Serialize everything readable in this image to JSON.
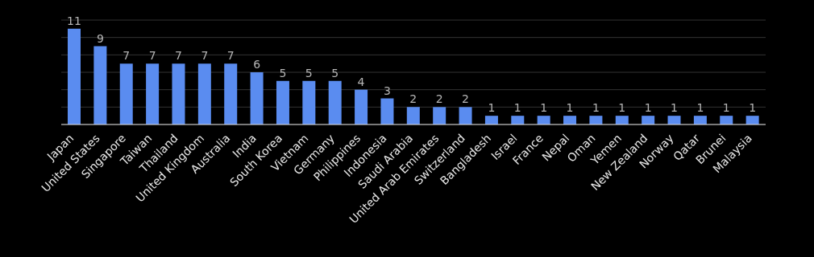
{
  "chart_data": {
    "type": "bar",
    "categories": [
      "Japan",
      "United States",
      "Singapore",
      "Taiwan",
      "Thailand",
      "United Kingdom",
      "Australia",
      "India",
      "South Korea",
      "Vietnam",
      "Germany",
      "Philippines",
      "Indonesia",
      "Saudi Arabia",
      "United Arab Emirates",
      "Switzerland",
      "Bangladesh",
      "Israel",
      "France",
      "Nepal",
      "Oman",
      "Yemen",
      "New Zealand",
      "Norway",
      "Qatar",
      "Brunei",
      "Malaysia"
    ],
    "values": [
      11,
      9,
      7,
      7,
      7,
      7,
      7,
      6,
      5,
      5,
      5,
      4,
      3,
      2,
      2,
      2,
      1,
      1,
      1,
      1,
      1,
      1,
      1,
      1,
      1,
      1,
      1
    ],
    "color": "#5a8cf0",
    "ylim": [
      0,
      12
    ],
    "tick_labels": "x",
    "grid": "y",
    "data_labels": true
  }
}
